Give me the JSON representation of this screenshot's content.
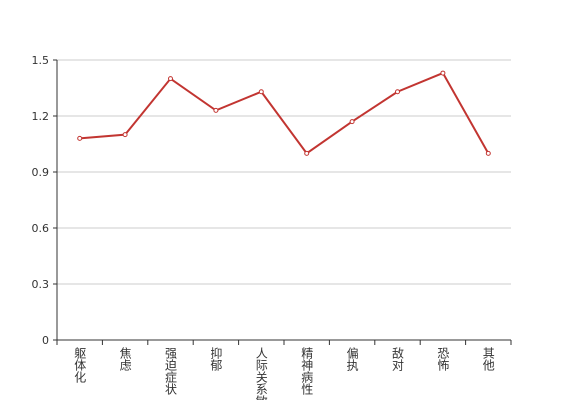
{
  "chart_data": {
    "type": "line",
    "categories": [
      "躯体化",
      "焦虑",
      "强迫症状",
      "抑郁",
      "人际关系敏感",
      "精神病性",
      "偏执",
      "敌对",
      "恐怖",
      "其他"
    ],
    "series": [
      {
        "color": "#c23531",
        "values": [
          1.08,
          1.1,
          1.4,
          1.23,
          1.33,
          1.0,
          1.17,
          1.33,
          1.43,
          1.0
        ]
      }
    ],
    "ylim": [
      0,
      1.5
    ],
    "yticks": [
      0,
      0.3,
      0.6,
      0.9,
      1.2,
      1.5
    ],
    "grid": true
  }
}
